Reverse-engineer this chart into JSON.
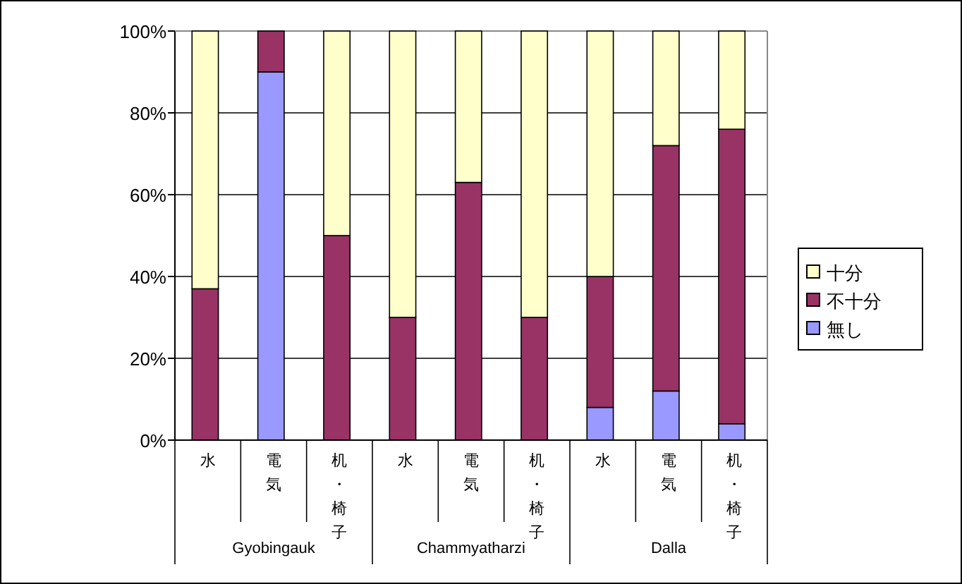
{
  "chart_data": {
    "type": "bar",
    "stacked": true,
    "categories": [
      "水",
      "電気",
      "机・椅子",
      "水",
      "電気",
      "机・椅子",
      "水",
      "電気",
      "机・椅子"
    ],
    "series": [
      {
        "name": "無し",
        "color": "#9999ff",
        "values": [
          0,
          90,
          0,
          0,
          0,
          0,
          8,
          12,
          4
        ]
      },
      {
        "name": "不十分",
        "color": "#993366",
        "values": [
          37,
          10,
          50,
          30,
          63,
          30,
          32,
          60,
          72
        ]
      },
      {
        "name": "十分",
        "color": "#ffffcc",
        "values": [
          63,
          0,
          50,
          70,
          37,
          70,
          60,
          28,
          24
        ]
      }
    ],
    "ylim": [
      0,
      100
    ],
    "yticks": [
      {
        "value": 0,
        "label": "0%"
      },
      {
        "value": 20,
        "label": "20%"
      },
      {
        "value": 40,
        "label": "40%"
      },
      {
        "value": 60,
        "label": "60%"
      },
      {
        "value": 80,
        "label": "80%"
      },
      {
        "value": 100,
        "label": "100%"
      }
    ],
    "grid": "y",
    "legend": "right",
    "annotations": [
      "Gyobingauk",
      "Chammyatharzi",
      "Dalla"
    ]
  }
}
